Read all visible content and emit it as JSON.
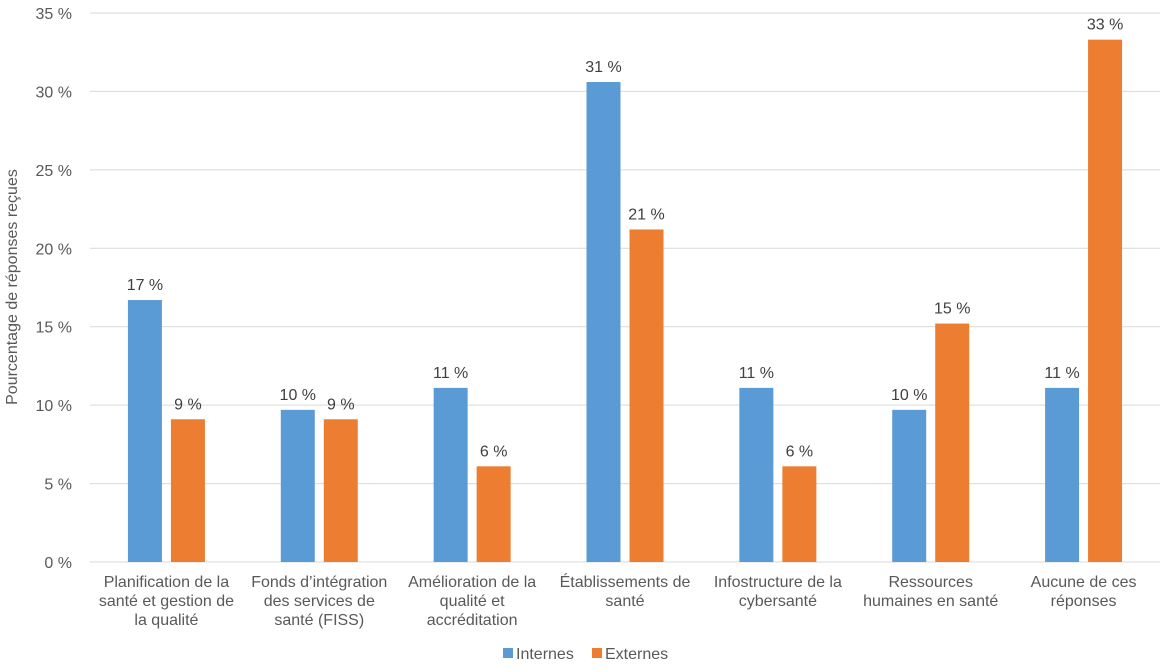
{
  "chart_data": {
    "type": "bar",
    "title": "",
    "xlabel": "",
    "ylabel": "Pourcentage de réponses reçues",
    "ylim": [
      0,
      35
    ],
    "yticks": [
      0,
      5,
      10,
      15,
      20,
      25,
      30,
      35
    ],
    "ytick_labels": [
      "0 %",
      "5 %",
      "10 %",
      "15 %",
      "20 %",
      "25 %",
      "30 %",
      "35 %"
    ],
    "grid": true,
    "legend_position": "bottom-center",
    "categories": [
      [
        "Planification de la",
        "santé et gestion de",
        "la qualité"
      ],
      [
        "Fonds d’intégration",
        "des services de",
        "santé (FISS)"
      ],
      [
        "Amélioration de la",
        "qualité et",
        "accréditation"
      ],
      [
        "Établissements de",
        "santé"
      ],
      [
        "Infostructure de la",
        "cybersanté"
      ],
      [
        "Ressources",
        "humaines en santé"
      ],
      [
        "Aucune de ces",
        "réponses"
      ]
    ],
    "series": [
      {
        "name": "Internes",
        "color": "#5b9bd5",
        "values": [
          16.7,
          9.7,
          11.1,
          30.6,
          11.1,
          9.7,
          11.1
        ],
        "labels": [
          "17 %",
          "10 %",
          "11 %",
          "31 %",
          "11 %",
          "10 %",
          "11 %"
        ]
      },
      {
        "name": "Externes",
        "color": "#ed7d31",
        "values": [
          9.1,
          9.1,
          6.1,
          21.2,
          6.1,
          15.2,
          33.3
        ],
        "labels": [
          "9 %",
          "9 %",
          "6 %",
          "21 %",
          "6 %",
          "15 %",
          "33 %"
        ]
      }
    ]
  }
}
